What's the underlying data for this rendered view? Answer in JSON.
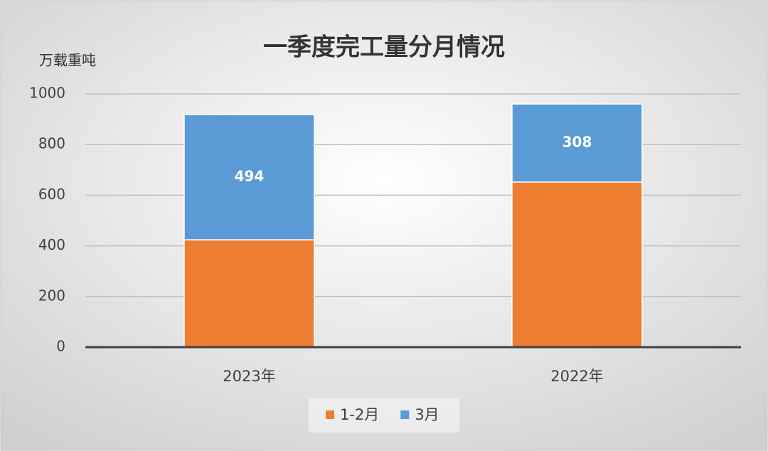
{
  "chart_data": {
    "type": "stacked_bar",
    "title": "一季度完工量分月情况",
    "y_axis_label": "万载重吨",
    "categories": [
      "2023年",
      "2022年"
    ],
    "series": [
      {
        "name": "1-2月",
        "color": "#ed7d31",
        "values": [
          424,
          652
        ],
        "show_labels": false
      },
      {
        "name": "3月",
        "color": "#5b9bd5",
        "values": [
          494,
          308
        ],
        "show_labels": true
      }
    ],
    "ylim": [
      0,
      1000
    ],
    "yticks": [
      0,
      200,
      400,
      600,
      800,
      1000
    ],
    "grid": true,
    "legend": "bottom"
  }
}
